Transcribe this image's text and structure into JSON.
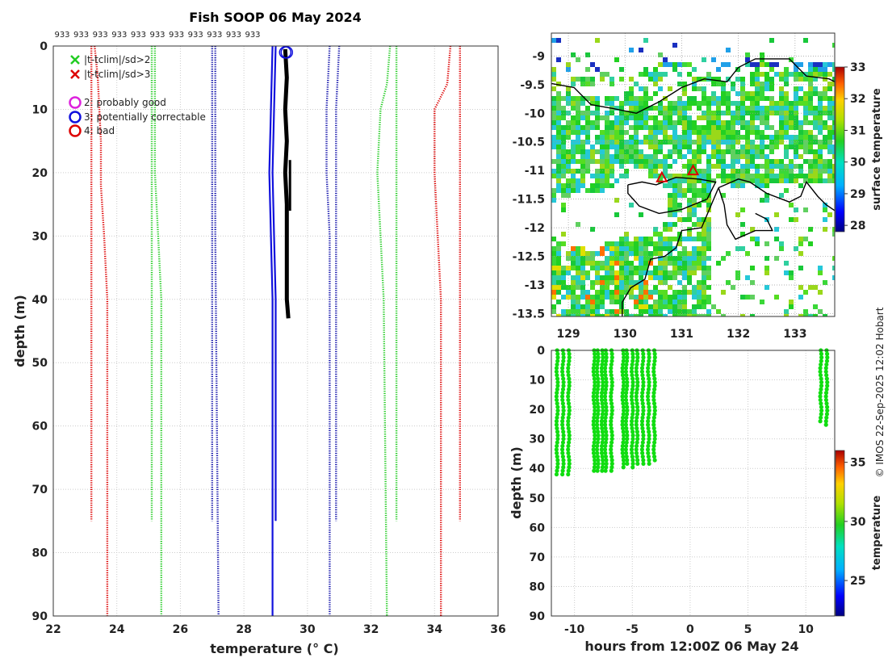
{
  "title": "Fish SOOP 06 May 2024",
  "credit": "© IMOS 22-Sep-2025 12:02 Hobart",
  "chart_data": [
    {
      "id": "profile",
      "type": "line",
      "xlabel": "temperature (° C)",
      "ylabel": "depth (m)",
      "xlim": [
        22,
        36
      ],
      "ylim": [
        90,
        0
      ],
      "xticks": [
        22,
        24,
        26,
        28,
        30,
        32,
        34,
        36
      ],
      "yticks": [
        0,
        10,
        20,
        30,
        40,
        50,
        60,
        70,
        80,
        90
      ],
      "grid": true,
      "top_counts": [
        "933",
        "933",
        "933",
        "933",
        "933",
        "933",
        "933",
        "933",
        "933",
        "933",
        "933"
      ],
      "legend": [
        {
          "label": "|t-tclim|/sd>2",
          "symbol": "x",
          "color": "#22cc22"
        },
        {
          "label": "|t-tclim|/sd>3",
          "symbol": "x",
          "color": "#dd0000"
        },
        {
          "label": "2: probably good",
          "symbol": "circle",
          "color": "#dd22dd"
        },
        {
          "label": "3: potentially correctable",
          "symbol": "circle",
          "color": "#1111dd"
        },
        {
          "label": "4: bad",
          "symbol": "circle",
          "color": "#dd0000"
        }
      ],
      "climatology_lines": [
        {
          "name": "mean+3sd (short)",
          "color": "#dd0000",
          "style": "dotted",
          "points": [
            [
              34.8,
              0
            ],
            [
              34.8,
              10
            ],
            [
              34.8,
              30
            ],
            [
              34.8,
              75
            ]
          ]
        },
        {
          "name": "mean+3sd",
          "color": "#dd0000",
          "style": "dotted",
          "points": [
            [
              34.5,
              0
            ],
            [
              34.4,
              6
            ],
            [
              34.0,
              10
            ],
            [
              34.0,
              20
            ],
            [
              34.1,
              30
            ],
            [
              34.2,
              40
            ],
            [
              34.2,
              90
            ]
          ]
        },
        {
          "name": "mean-3sd (short)",
          "color": "#dd0000",
          "style": "dotted",
          "points": [
            [
              23.2,
              0
            ],
            [
              23.2,
              30
            ],
            [
              23.2,
              75
            ]
          ]
        },
        {
          "name": "mean-3sd",
          "color": "#dd0000",
          "style": "dotted",
          "points": [
            [
              23.3,
              0
            ],
            [
              23.4,
              5
            ],
            [
              23.5,
              15
            ],
            [
              23.5,
              22
            ],
            [
              23.6,
              30
            ],
            [
              23.7,
              40
            ],
            [
              23.7,
              90
            ]
          ]
        },
        {
          "name": "mean+2sd (short)",
          "color": "#22cc22",
          "style": "dotted",
          "points": [
            [
              32.8,
              0
            ],
            [
              32.8,
              30
            ],
            [
              32.8,
              75
            ]
          ]
        },
        {
          "name": "mean+2sd",
          "color": "#22cc22",
          "style": "dotted",
          "points": [
            [
              32.6,
              0
            ],
            [
              32.5,
              6
            ],
            [
              32.3,
              10
            ],
            [
              32.2,
              20
            ],
            [
              32.3,
              30
            ],
            [
              32.4,
              40
            ],
            [
              32.5,
              90
            ]
          ]
        },
        {
          "name": "mean-2sd (short)",
          "color": "#22cc22",
          "style": "dotted",
          "points": [
            [
              25.1,
              0
            ],
            [
              25.1,
              30
            ],
            [
              25.1,
              75
            ]
          ]
        },
        {
          "name": "mean-2sd",
          "color": "#22cc22",
          "style": "dotted",
          "points": [
            [
              25.2,
              0
            ],
            [
              25.2,
              20
            ],
            [
              25.3,
              30
            ],
            [
              25.4,
              40
            ],
            [
              25.4,
              90
            ]
          ]
        },
        {
          "name": "mean+1sd (short)",
          "color": "#1111aa",
          "style": "dotted",
          "points": [
            [
              31.0,
              0
            ],
            [
              30.9,
              10
            ],
            [
              30.9,
              30
            ],
            [
              30.9,
              75
            ]
          ]
        },
        {
          "name": "mean+1sd",
          "color": "#1111aa",
          "style": "dotted",
          "points": [
            [
              30.7,
              0
            ],
            [
              30.6,
              10
            ],
            [
              30.6,
              20
            ],
            [
              30.7,
              30
            ],
            [
              30.7,
              90
            ]
          ]
        },
        {
          "name": "mean-1sd (short)",
          "color": "#1111aa",
          "style": "dotted",
          "points": [
            [
              27.0,
              0
            ],
            [
              27.0,
              30
            ],
            [
              27.0,
              75
            ]
          ]
        },
        {
          "name": "mean-1sd",
          "color": "#1111aa",
          "style": "dotted",
          "points": [
            [
              27.1,
              0
            ],
            [
              27.1,
              30
            ],
            [
              27.2,
              90
            ]
          ]
        },
        {
          "name": "mean",
          "color": "#1111dd",
          "style": "solid",
          "points": [
            [
              28.9,
              0
            ],
            [
              28.85,
              10
            ],
            [
              28.8,
              20
            ],
            [
              28.85,
              30
            ],
            [
              28.9,
              40
            ],
            [
              28.9,
              90
            ]
          ]
        },
        {
          "name": "mean (short)",
          "color": "#1111dd",
          "style": "solid",
          "points": [
            [
              29.0,
              0
            ],
            [
              28.95,
              10
            ],
            [
              28.9,
              20
            ],
            [
              28.95,
              30
            ],
            [
              29.0,
              40
            ],
            [
              29.0,
              75
            ]
          ]
        }
      ],
      "profile": {
        "color": "#000000",
        "points": [
          [
            29.3,
            0.5
          ],
          [
            29.35,
            5
          ],
          [
            29.3,
            10
          ],
          [
            29.35,
            15
          ],
          [
            29.3,
            20
          ],
          [
            29.35,
            25
          ],
          [
            29.35,
            30
          ],
          [
            29.35,
            35
          ],
          [
            29.35,
            40
          ],
          [
            29.4,
            43
          ]
        ],
        "spur": [
          [
            29.45,
            18
          ],
          [
            29.45,
            26
          ]
        ]
      },
      "qc_markers": [
        [
          29.3,
          1
        ],
        [
          29.35,
          1
        ]
      ]
    },
    {
      "id": "map",
      "type": "heatmap",
      "xlim": [
        128.7,
        133.7
      ],
      "ylim": [
        -13.55,
        -8.6
      ],
      "xticks": [
        129,
        130,
        131,
        132,
        133
      ],
      "yticks": [
        -9,
        -9.5,
        -10,
        -10.5,
        -11,
        -11.5,
        -12,
        -12.5,
        -13,
        -13.5
      ],
      "colorbar": {
        "label": "surface temperature",
        "range": [
          27.8,
          33
        ],
        "ticks": [
          28,
          29,
          30,
          31,
          32,
          33
        ]
      },
      "stations": [
        [
          130.65,
          -11.12
        ],
        [
          131.2,
          -11.0
        ]
      ],
      "coastlines": [
        [
          [
            128.7,
            -9.48
          ],
          [
            129.1,
            -9.55
          ],
          [
            129.4,
            -9.85
          ],
          [
            129.8,
            -9.92
          ],
          [
            130.2,
            -10.0
          ],
          [
            130.6,
            -9.8
          ],
          [
            131.0,
            -9.55
          ],
          [
            131.4,
            -9.4
          ],
          [
            131.8,
            -9.45
          ],
          [
            132.0,
            -9.2
          ],
          [
            132.3,
            -9.05
          ],
          [
            132.9,
            -9.05
          ],
          [
            133.2,
            -9.35
          ],
          [
            133.6,
            -9.4
          ],
          [
            133.7,
            -9.45
          ]
        ],
        [
          [
            130.05,
            -11.25
          ],
          [
            130.3,
            -11.2
          ],
          [
            130.55,
            -11.25
          ],
          [
            130.9,
            -11.12
          ],
          [
            131.3,
            -11.15
          ],
          [
            131.6,
            -11.2
          ],
          [
            131.45,
            -11.5
          ],
          [
            131.0,
            -11.68
          ],
          [
            130.6,
            -11.75
          ],
          [
            130.25,
            -11.62
          ],
          [
            130.05,
            -11.4
          ],
          [
            130.05,
            -11.25
          ]
        ],
        [
          [
            131.65,
            -11.3
          ],
          [
            132.0,
            -11.15
          ],
          [
            132.2,
            -11.2
          ],
          [
            132.5,
            -11.4
          ],
          [
            132.9,
            -11.55
          ],
          [
            133.1,
            -11.45
          ],
          [
            133.2,
            -11.2
          ],
          [
            133.4,
            -11.45
          ],
          [
            133.55,
            -11.6
          ],
          [
            133.7,
            -11.7
          ]
        ],
        [
          [
            131.65,
            -11.3
          ],
          [
            131.75,
            -11.6
          ],
          [
            131.8,
            -11.95
          ],
          [
            131.95,
            -12.2
          ],
          [
            132.3,
            -12.05
          ],
          [
            132.6,
            -12.05
          ],
          [
            132.5,
            -11.85
          ],
          [
            132.3,
            -11.75
          ]
        ],
        [
          [
            131.65,
            -11.3
          ],
          [
            131.35,
            -12.0
          ],
          [
            131.0,
            -12.05
          ],
          [
            130.9,
            -12.35
          ],
          [
            130.7,
            -12.5
          ],
          [
            130.45,
            -12.55
          ],
          [
            130.35,
            -12.9
          ],
          [
            130.1,
            -13.05
          ],
          [
            129.95,
            -13.3
          ],
          [
            129.95,
            -13.55
          ]
        ]
      ]
    },
    {
      "id": "time-depth",
      "type": "scatter",
      "xlabel": "hours from 12:00Z 06 May 24",
      "ylabel": "depth (m)",
      "xlim": [
        -12,
        12.5
      ],
      "ylim": [
        90,
        0
      ],
      "xticks": [
        -10,
        -5,
        0,
        5,
        10
      ],
      "yticks": [
        0,
        10,
        20,
        30,
        40,
        50,
        60,
        70,
        80,
        90
      ],
      "grid": true,
      "colorbar": {
        "label": "temperature",
        "range": [
          22,
          36
        ],
        "ticks": [
          25,
          30,
          35
        ]
      },
      "point_color": "#11dd11",
      "casts": [
        {
          "hours": -11.5,
          "max_depth": 43
        },
        {
          "hours": -11.0,
          "max_depth": 43
        },
        {
          "hours": -10.5,
          "max_depth": 43
        },
        {
          "hours": -8.3,
          "max_depth": 41
        },
        {
          "hours": -8.0,
          "max_depth": 42
        },
        {
          "hours": -7.6,
          "max_depth": 41
        },
        {
          "hours": -7.3,
          "max_depth": 42
        },
        {
          "hours": -6.8,
          "max_depth": 42
        },
        {
          "hours": -5.8,
          "max_depth": 40
        },
        {
          "hours": -5.5,
          "max_depth": 39
        },
        {
          "hours": -5.0,
          "max_depth": 40
        },
        {
          "hours": -4.6,
          "max_depth": 39
        },
        {
          "hours": -4.1,
          "max_depth": 39
        },
        {
          "hours": -3.6,
          "max_depth": 39
        },
        {
          "hours": -3.1,
          "max_depth": 38
        },
        {
          "hours": 11.3,
          "max_depth": 25
        },
        {
          "hours": 11.8,
          "max_depth": 26
        }
      ]
    }
  ]
}
